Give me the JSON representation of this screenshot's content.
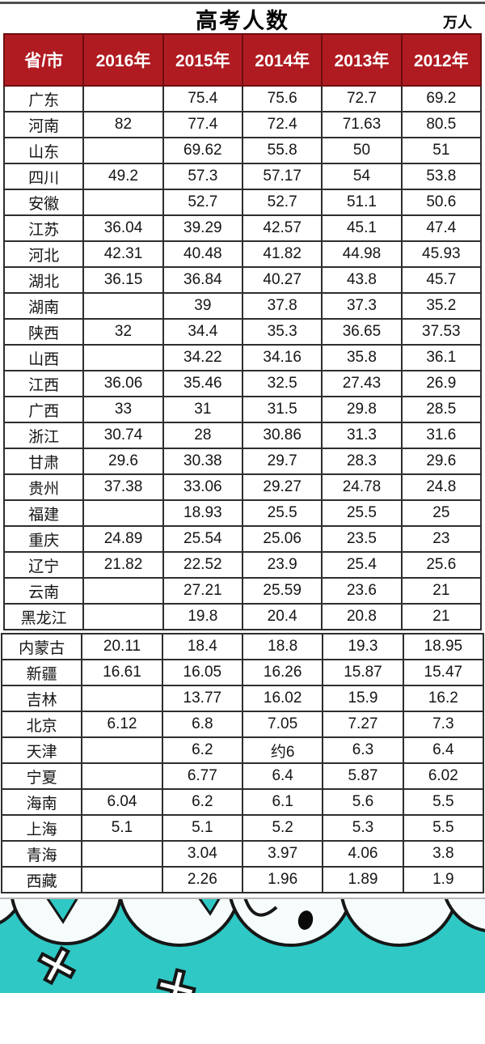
{
  "page": {
    "title": "高考人数",
    "unit_label": "万人"
  },
  "colors": {
    "header_bg": "#B01B21",
    "header_text": "#FFFFFF",
    "table_border": "#2E2E2E",
    "illustration_teal": "#2FC8C5",
    "illustration_outline": "#161616"
  },
  "chart_data": {
    "type": "table",
    "title": "高考人数",
    "unit": "万人",
    "columns": [
      "省/市",
      "2016年",
      "2015年",
      "2014年",
      "2013年",
      "2012年"
    ],
    "upper_section_row_count": 21,
    "rows": [
      {
        "province": "广东",
        "values": [
          "",
          "75.4",
          "75.6",
          "72.7",
          "69.2"
        ]
      },
      {
        "province": "河南",
        "values": [
          "82",
          "77.4",
          "72.4",
          "71.63",
          "80.5"
        ]
      },
      {
        "province": "山东",
        "values": [
          "",
          "69.62",
          "55.8",
          "50",
          "51"
        ]
      },
      {
        "province": "四川",
        "values": [
          "49.2",
          "57.3",
          "57.17",
          "54",
          "53.8"
        ]
      },
      {
        "province": "安徽",
        "values": [
          "",
          "52.7",
          "52.7",
          "51.1",
          "50.6"
        ]
      },
      {
        "province": "江苏",
        "values": [
          "36.04",
          "39.29",
          "42.57",
          "45.1",
          "47.4"
        ]
      },
      {
        "province": "河北",
        "values": [
          "42.31",
          "40.48",
          "41.82",
          "44.98",
          "45.93"
        ]
      },
      {
        "province": "湖北",
        "values": [
          "36.15",
          "36.84",
          "40.27",
          "43.8",
          "45.7"
        ]
      },
      {
        "province": "湖南",
        "values": [
          "",
          "39",
          "37.8",
          "37.3",
          "35.2"
        ]
      },
      {
        "province": "陕西",
        "values": [
          "32",
          "34.4",
          "35.3",
          "36.65",
          "37.53"
        ]
      },
      {
        "province": "山西",
        "values": [
          "",
          "34.22",
          "34.16",
          "35.8",
          "36.1"
        ]
      },
      {
        "province": "江西",
        "values": [
          "36.06",
          "35.46",
          "32.5",
          "27.43",
          "26.9"
        ]
      },
      {
        "province": "广西",
        "values": [
          "33",
          "31",
          "31.5",
          "29.8",
          "28.5"
        ]
      },
      {
        "province": "浙江",
        "values": [
          "30.74",
          "28",
          "30.86",
          "31.3",
          "31.6"
        ]
      },
      {
        "province": "甘肃",
        "values": [
          "29.6",
          "30.38",
          "29.7",
          "28.3",
          "29.6"
        ]
      },
      {
        "province": "贵州",
        "values": [
          "37.38",
          "33.06",
          "29.27",
          "24.78",
          "24.8"
        ]
      },
      {
        "province": "福建",
        "values": [
          "",
          "18.93",
          "25.5",
          "25.5",
          "25"
        ]
      },
      {
        "province": "重庆",
        "values": [
          "24.89",
          "25.54",
          "25.06",
          "23.5",
          "23"
        ]
      },
      {
        "province": "辽宁",
        "values": [
          "21.82",
          "22.52",
          "23.9",
          "25.4",
          "25.6"
        ]
      },
      {
        "province": "云南",
        "values": [
          "",
          "27.21",
          "25.59",
          "23.6",
          "21"
        ]
      },
      {
        "province": "黑龙江",
        "values": [
          "",
          "19.8",
          "20.4",
          "20.8",
          "21"
        ]
      },
      {
        "province": "内蒙古",
        "values": [
          "20.11",
          "18.4",
          "18.8",
          "19.3",
          "18.95"
        ]
      },
      {
        "province": "新疆",
        "values": [
          "16.61",
          "16.05",
          "16.26",
          "15.87",
          "15.47"
        ]
      },
      {
        "province": "吉林",
        "values": [
          "",
          "13.77",
          "16.02",
          "15.9",
          "16.2"
        ]
      },
      {
        "province": "北京",
        "values": [
          "6.12",
          "6.8",
          "7.05",
          "7.27",
          "7.3"
        ]
      },
      {
        "province": "天津",
        "values": [
          "",
          "6.2",
          "约6",
          "6.3",
          "6.4"
        ]
      },
      {
        "province": "宁夏",
        "values": [
          "",
          "6.77",
          "6.4",
          "5.87",
          "6.02"
        ]
      },
      {
        "province": "海南",
        "values": [
          "6.04",
          "6.2",
          "6.1",
          "5.6",
          "5.5"
        ]
      },
      {
        "province": "上海",
        "values": [
          "5.1",
          "5.1",
          "5.2",
          "5.3",
          "5.5"
        ]
      },
      {
        "province": "青海",
        "values": [
          "",
          "3.04",
          "3.97",
          "4.06",
          "3.8"
        ]
      },
      {
        "province": "西藏",
        "values": [
          "",
          "2.26",
          "1.96",
          "1.89",
          "1.9"
        ]
      }
    ]
  }
}
